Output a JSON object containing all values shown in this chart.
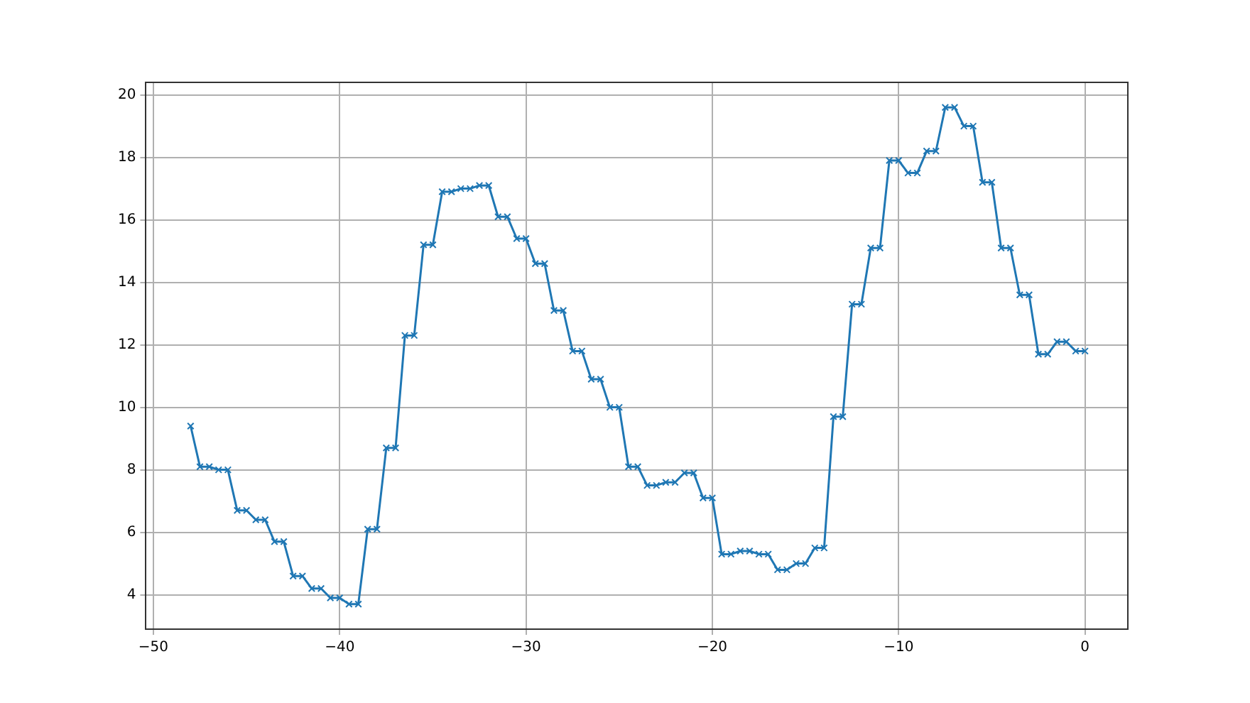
{
  "chart_data": {
    "type": "line",
    "x": [
      -48,
      -47.5,
      -47,
      -46.5,
      -46,
      -45.5,
      -45,
      -44.5,
      -44,
      -43.5,
      -43,
      -42.5,
      -42,
      -41.5,
      -41,
      -40.5,
      -40,
      -39.5,
      -39,
      -38.5,
      -38,
      -37.5,
      -37,
      -36.5,
      -36,
      -35.5,
      -35,
      -34.5,
      -34,
      -33.5,
      -33,
      -32.5,
      -32,
      -31.5,
      -31,
      -30.5,
      -30,
      -29.5,
      -29,
      -28.5,
      -28,
      -27.5,
      -27,
      -26.5,
      -26,
      -25.5,
      -25,
      -24.5,
      -24,
      -23.5,
      -23,
      -22.5,
      -22,
      -21.5,
      -21,
      -20.5,
      -20,
      -19.5,
      -19,
      -18.5,
      -18,
      -17.5,
      -17,
      -16.5,
      -16,
      -15.5,
      -15,
      -14.5,
      -14,
      -13.5,
      -13,
      -12.5,
      -12,
      -11.5,
      -11,
      -10.5,
      -10,
      -9.5,
      -9,
      -8.5,
      -8,
      -7.5,
      -7,
      -6.5,
      -6,
      -5.5,
      -5,
      -4.5,
      -4,
      -3.5,
      -3,
      -2.5,
      -2,
      -1.5,
      -1,
      -0.5,
      0
    ],
    "series": [
      {
        "color": "#1f77b4",
        "values": [
          9.4,
          8.1,
          8.1,
          8.0,
          8.0,
          6.7,
          6.7,
          6.4,
          6.4,
          5.7,
          5.7,
          4.6,
          4.6,
          4.2,
          4.2,
          3.9,
          3.9,
          3.7,
          3.7,
          6.1,
          6.1,
          8.7,
          8.7,
          12.3,
          12.3,
          15.2,
          15.2,
          16.9,
          16.9,
          17.0,
          17.0,
          17.1,
          17.1,
          16.1,
          16.1,
          15.4,
          15.4,
          14.6,
          14.6,
          13.1,
          13.1,
          11.8,
          11.8,
          10.9,
          10.9,
          10.0,
          10.0,
          8.1,
          8.1,
          7.5,
          7.5,
          7.6,
          7.6,
          7.9,
          7.9,
          7.1,
          7.1,
          5.3,
          5.3,
          5.4,
          5.4,
          5.3,
          5.3,
          4.8,
          4.8,
          5.0,
          5.0,
          5.5,
          5.5,
          9.7,
          9.7,
          13.3,
          13.3,
          15.1,
          15.1,
          17.9,
          17.9,
          17.5,
          17.5,
          18.2,
          18.2,
          19.6,
          19.6,
          19.0,
          19.0,
          17.2,
          17.2,
          15.1,
          15.1,
          13.6,
          13.6,
          11.7,
          11.7,
          12.1,
          12.1,
          11.8,
          11.8
        ]
      }
    ],
    "xlim": [
      -50.4,
      2.3
    ],
    "xticks": [
      -50,
      -40,
      -30,
      -20,
      -10,
      0
    ],
    "ylim": [
      2.9,
      20.4
    ],
    "yticks": [
      4,
      6,
      8,
      10,
      12,
      14,
      16,
      18,
      20
    ],
    "grid": true,
    "marker": "cross",
    "line_style": "solid",
    "legend": false
  }
}
